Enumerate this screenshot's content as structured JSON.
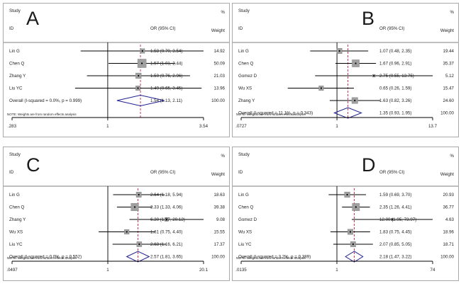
{
  "figure": {
    "colors": {
      "frame": "#a9a9a9",
      "divider": "#555555",
      "null_line": "#000000",
      "ci_line": "#000000",
      "weight_box": "#a0a0a0",
      "overall_diamond": "#1f1f8f",
      "overall_line": "#cc2244"
    }
  },
  "chart_data": [
    {
      "type": "forest",
      "panel_label": "A",
      "header": {
        "study": "Study",
        "id": "ID",
        "effect": "OR (95% CI)",
        "weight_pct": "%",
        "weight": "Weight"
      },
      "scale": "log",
      "null_value": 1,
      "xticks": [
        0.283,
        1,
        3.54
      ],
      "xtick_labels": [
        ".283",
        "1",
        "3.54"
      ],
      "studies": [
        {
          "id": "Lin G",
          "or": 1.58,
          "lo": 0.7,
          "hi": 3.54,
          "ci_text": "1.58 (0.70, 3.54)",
          "weight": 14.92,
          "weight_text": "14.92"
        },
        {
          "id": "Chen Q",
          "or": 1.57,
          "lo": 1.01,
          "hi": 2.44,
          "ci_text": "1.57 (1.01, 2.44)",
          "weight": 50.09,
          "weight_text": "50.09"
        },
        {
          "id": "Zhang Y",
          "or": 1.5,
          "lo": 0.76,
          "hi": 2.96,
          "ci_text": "1.50 (0.76, 2.96)",
          "weight": 21.03,
          "weight_text": "21.03"
        },
        {
          "id": "Liu YC",
          "or": 1.49,
          "lo": 0.65,
          "hi": 3.45,
          "ci_text": "1.49 (0.65, 3.45)",
          "weight": 13.96,
          "weight_text": "13.96"
        }
      ],
      "overall": {
        "label": "Overall  (I-squared = 0.0%, p = 0.999)",
        "or": 1.54,
        "lo": 1.13,
        "hi": 2.11,
        "ci_text": "1.54 (1.13, 2.11)",
        "weight_text": "100.00"
      },
      "note": "NOTE: Weights are from random effects analysis"
    },
    {
      "type": "forest",
      "panel_label": "B",
      "header": {
        "study": "Study",
        "id": "ID",
        "effect": "OR (95% CI)",
        "weight_pct": "%",
        "weight": "Weight"
      },
      "scale": "log",
      "null_value": 1,
      "xticks": [
        0.0727,
        1,
        13.7
      ],
      "xtick_labels": [
        ".0727",
        "1",
        "13.7"
      ],
      "studies": [
        {
          "id": "Lin G",
          "or": 1.07,
          "lo": 0.48,
          "hi": 2.35,
          "ci_text": "1.07 (0.48, 2.35)",
          "weight": 19.44,
          "weight_text": "19.44"
        },
        {
          "id": "Chen Q",
          "or": 1.67,
          "lo": 0.96,
          "hi": 2.91,
          "ci_text": "1.67 (0.96, 2.91)",
          "weight": 35.37,
          "weight_text": "35.37"
        },
        {
          "id": "Gomez D",
          "or": 2.75,
          "lo": 0.55,
          "hi": 13.75,
          "ci_text": "2.75 (0.55, 13.75)",
          "weight": 5.12,
          "weight_text": "5.12"
        },
        {
          "id": "Wu XS",
          "or": 0.65,
          "lo": 0.26,
          "hi": 1.59,
          "ci_text": "0.65 (0.26, 1.59)",
          "weight": 15.47,
          "weight_text": "15.47"
        },
        {
          "id": "Zhang Y",
          "or": 1.63,
          "lo": 0.82,
          "hi": 3.26,
          "ci_text": "1.63 (0.82, 3.26)",
          "weight": 24.6,
          "weight_text": "24.60"
        }
      ],
      "overall": {
        "label": "Overall  (I-squared = 11.1%, p = 0.343)",
        "or": 1.35,
        "lo": 0.93,
        "hi": 1.95,
        "ci_text": "1.35 (0.93, 1.95)",
        "weight_text": "100.00"
      },
      "note": "NOTE: Weights are from random effects analysis"
    },
    {
      "type": "forest",
      "panel_label": "C",
      "header": {
        "study": "Study",
        "id": "ID",
        "effect": "OR (95% CI)",
        "weight_pct": "%",
        "weight": "Weight"
      },
      "scale": "log",
      "null_value": 1,
      "xticks": [
        0.0497,
        1,
        20.1
      ],
      "xtick_labels": [
        ".0497",
        "1",
        "20.1"
      ],
      "studies": [
        {
          "id": "Lin G",
          "or": 2.64,
          "lo": 1.18,
          "hi": 5.94,
          "ci_text": "2.64 (1.18, 5.94)",
          "weight": 18.63,
          "weight_text": "18.63"
        },
        {
          "id": "Chen Q",
          "or": 2.33,
          "lo": 1.33,
          "hi": 4.06,
          "ci_text": "2.33 (1.33, 4.06)",
          "weight": 39.38,
          "weight_text": "39.38"
        },
        {
          "id": "Zhang Y",
          "or": 6.3,
          "lo": 1.97,
          "hi": 20.12,
          "ci_text": "6.30 (1.97, 20.12)",
          "weight": 9.08,
          "weight_text": "9.08"
        },
        {
          "id": "Wu XS",
          "or": 1.81,
          "lo": 0.75,
          "hi": 4.4,
          "ci_text": "1.81 (0.75, 4.40)",
          "weight": 15.55,
          "weight_text": "15.55"
        },
        {
          "id": "Liu YC",
          "or": 2.68,
          "lo": 1.16,
          "hi": 6.21,
          "ci_text": "2.68 (1.16, 6.21)",
          "weight": 17.37,
          "weight_text": "17.37"
        }
      ],
      "overall": {
        "label": "Overall  (I-squared = 0.0%, p = 0.552)",
        "or": 2.57,
        "lo": 1.81,
        "hi": 3.65,
        "ci_text": "2.57 (1.81, 3.65)",
        "weight_text": "100.00"
      },
      "note": "NOTE: Weights are from random effects analysis"
    },
    {
      "type": "forest",
      "panel_label": "D",
      "header": {
        "study": "Study",
        "id": "ID",
        "effect": "OR (95% CI)",
        "weight_pct": "%",
        "weight": "Weight"
      },
      "scale": "log",
      "null_value": 1,
      "xticks": [
        0.0135,
        1,
        74
      ],
      "xtick_labels": [
        ".0135",
        "1",
        "74"
      ],
      "studies": [
        {
          "id": "Lin G",
          "or": 1.59,
          "lo": 0.69,
          "hi": 3.7,
          "ci_text": "1.59 (0.69, 3.70)",
          "weight": 20.93,
          "weight_text": "20.93"
        },
        {
          "id": "Chen Q",
          "or": 2.35,
          "lo": 1.26,
          "hi": 4.41,
          "ci_text": "2.35 (1.26, 4.41)",
          "weight": 36.77,
          "weight_text": "36.77"
        },
        {
          "id": "Gomez D",
          "or": 12.0,
          "lo": 1.95,
          "hi": 73.97,
          "ci_text": "12.00 (1.95, 73.97)",
          "weight": 4.63,
          "weight_text": "4.63"
        },
        {
          "id": "Wu XS",
          "or": 1.83,
          "lo": 0.75,
          "hi": 4.45,
          "ci_text": "1.83 (0.75, 4.45)",
          "weight": 18.96,
          "weight_text": "18.96"
        },
        {
          "id": "Liu YC",
          "or": 2.07,
          "lo": 0.85,
          "hi": 5.05,
          "ci_text": "2.07 (0.85, 5.05)",
          "weight": 18.71,
          "weight_text": "18.71"
        }
      ],
      "overall": {
        "label": "Overall  (I-squared = 3.2%, p = 0.389)",
        "or": 2.18,
        "lo": 1.47,
        "hi": 3.22,
        "ci_text": "2.18 (1.47, 3.22)",
        "weight_text": "100.00"
      },
      "note": "NOTE: Weights are from random effects analysis"
    }
  ]
}
